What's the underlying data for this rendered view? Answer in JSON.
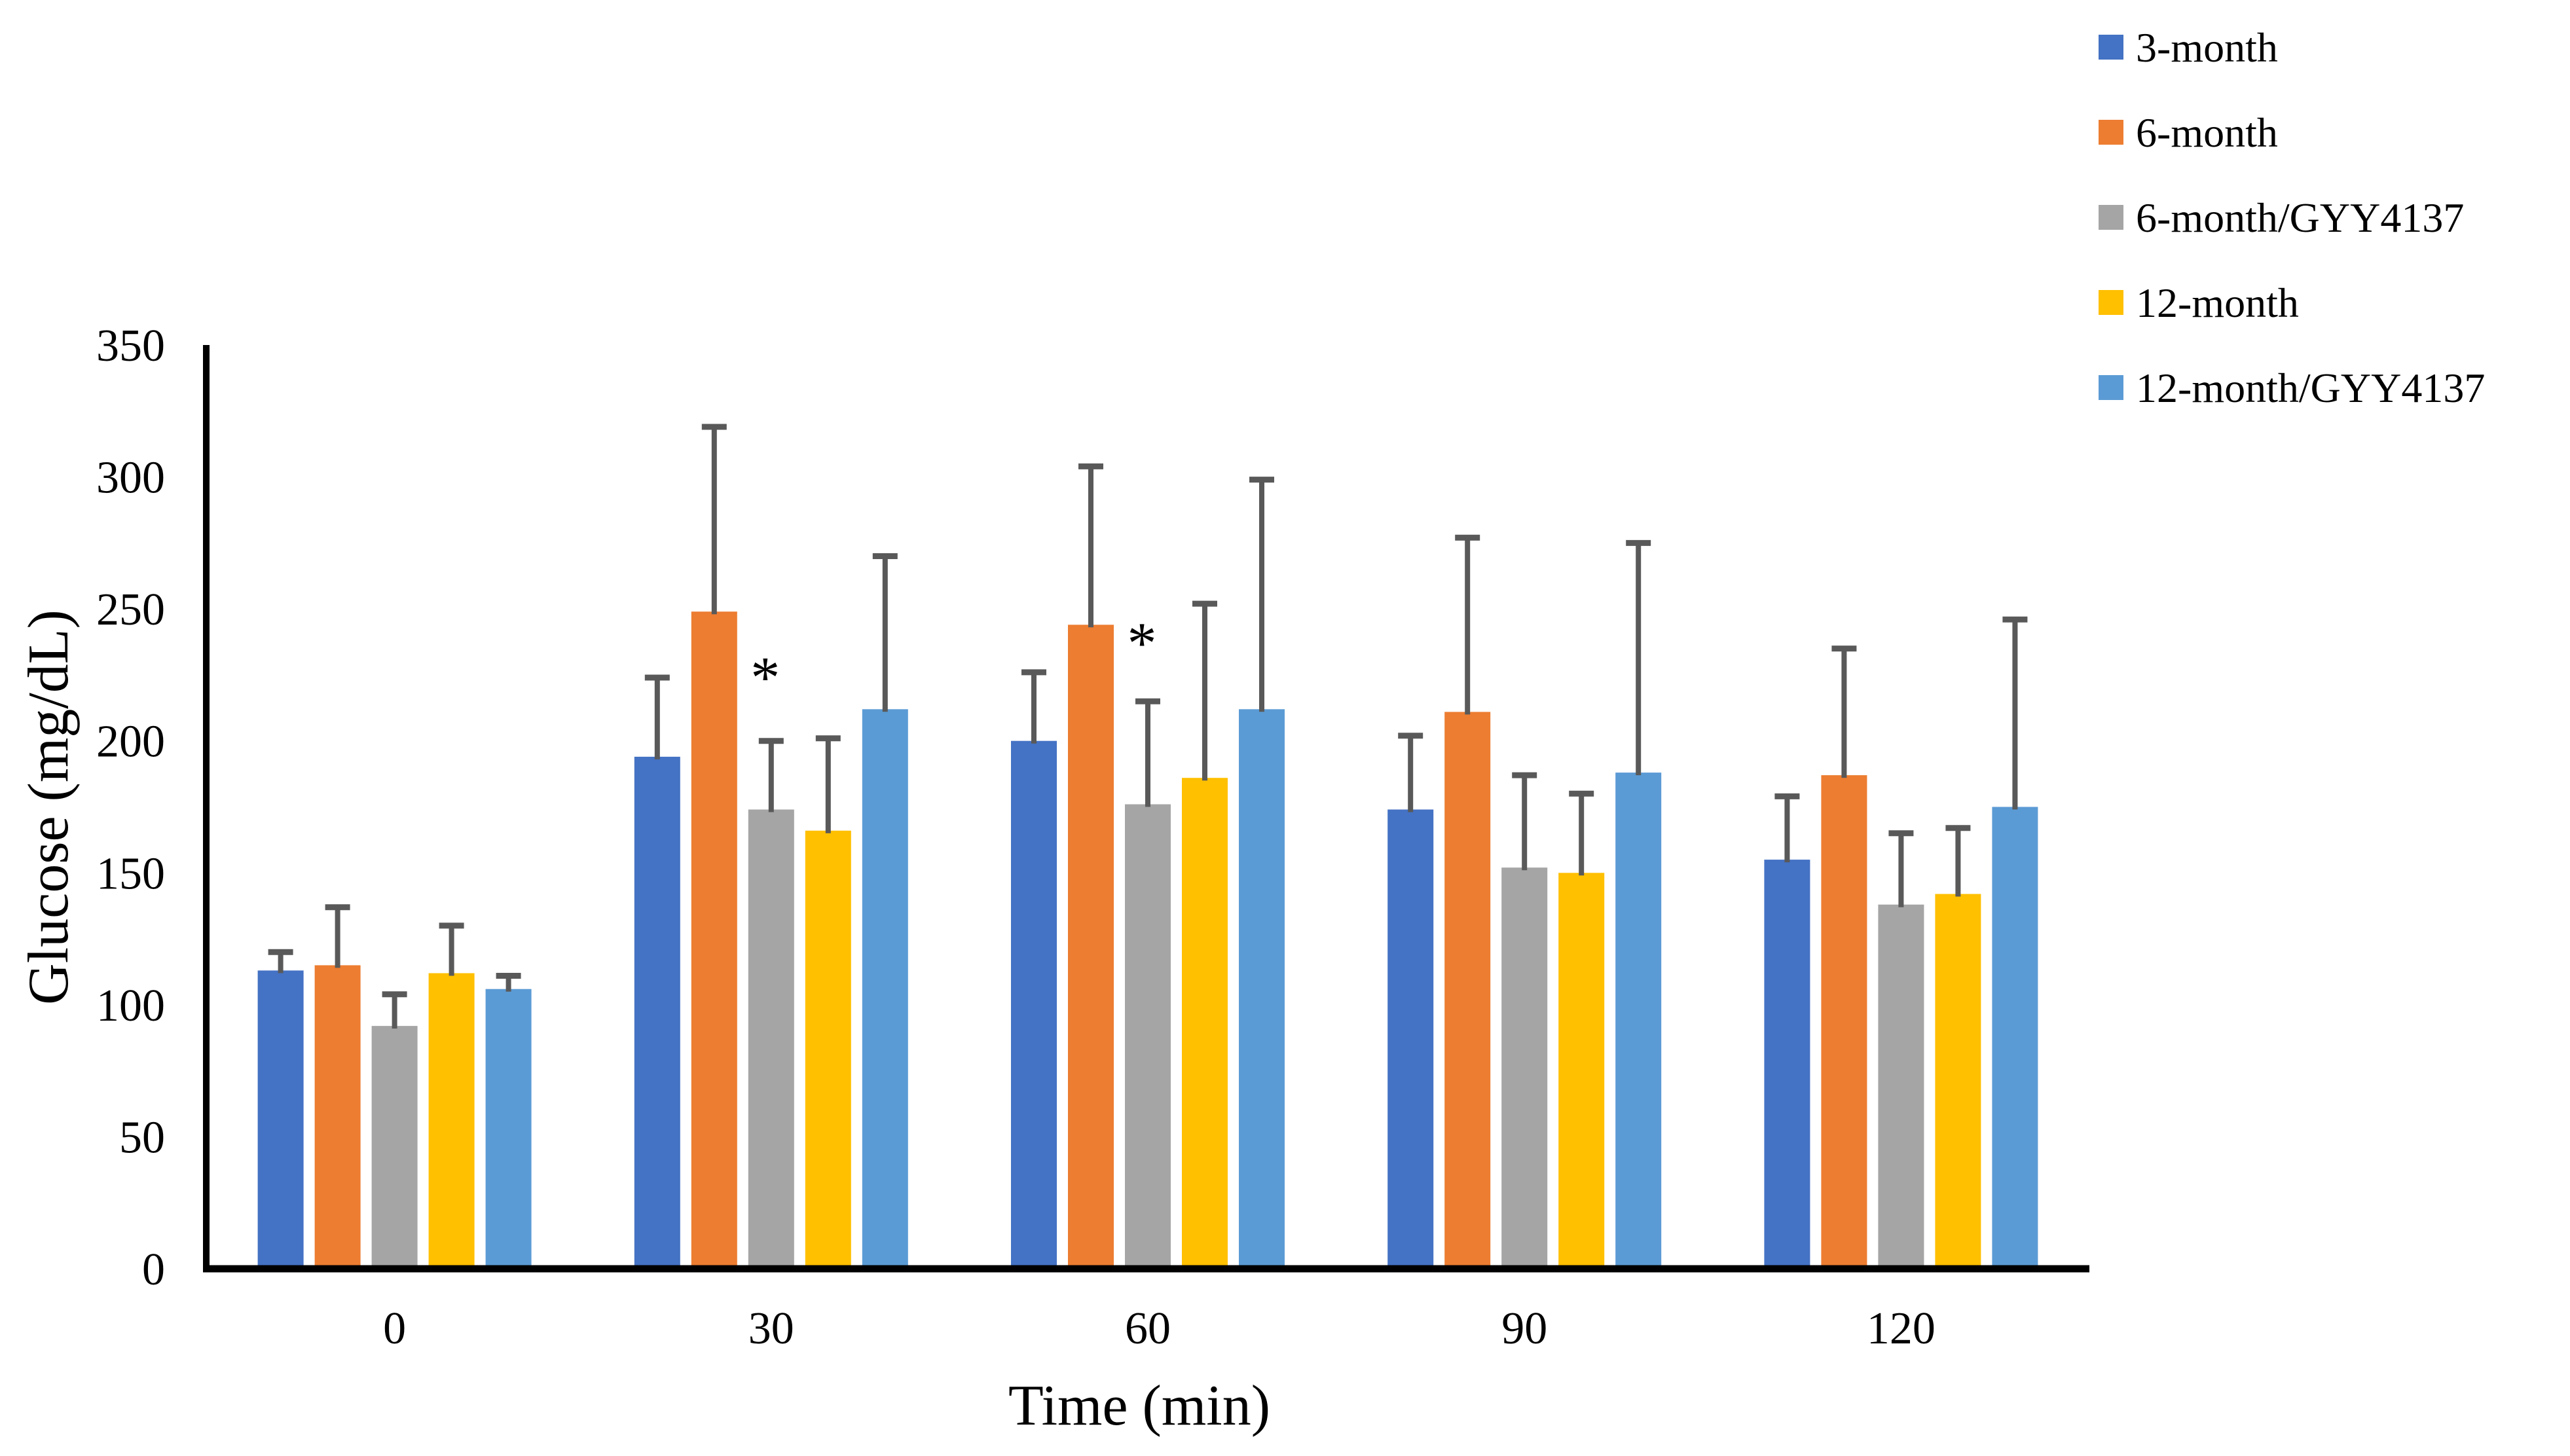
{
  "figure": {
    "background": "#FFFFFF",
    "axis_color": "#000000",
    "text_color": "#000000"
  },
  "chart_data": {
    "type": "bar",
    "title": "",
    "xlabel": "Time (min)",
    "ylabel": "Glucose (mg/dL)",
    "categories": [
      "0",
      "30",
      "60",
      "90",
      "120"
    ],
    "series": [
      {
        "name": "3-month",
        "color": "#4472C4",
        "values": [
          113,
          194,
          200,
          174,
          155
        ],
        "error_up": [
          7,
          30,
          26,
          28,
          24
        ]
      },
      {
        "name": "6-month",
        "color": "#ED7D31",
        "values": [
          115,
          249,
          244,
          211,
          187
        ],
        "error_up": [
          22,
          70,
          60,
          66,
          48
        ]
      },
      {
        "name": "6-month/GYY4137",
        "color": "#A5A5A5",
        "values": [
          92,
          174,
          176,
          152,
          138
        ],
        "error_up": [
          12,
          26,
          39,
          35,
          27
        ]
      },
      {
        "name": "12-month",
        "color": "#FFC000",
        "values": [
          112,
          166,
          186,
          150,
          142
        ],
        "error_up": [
          18,
          35,
          66,
          30,
          25
        ]
      },
      {
        "name": "12-month/GYY4137",
        "color": "#5B9BD5",
        "values": [
          106,
          212,
          212,
          188,
          175
        ],
        "error_up": [
          5,
          58,
          87,
          87,
          71
        ]
      }
    ],
    "ylim": [
      0,
      350
    ],
    "ytick_step": 50,
    "yticks": [
      "0",
      "50",
      "100",
      "150",
      "200",
      "250",
      "300",
      "350"
    ],
    "xticks": [
      "0",
      "30",
      "60",
      "90",
      "120"
    ],
    "grid": false,
    "legend_position": "top-right",
    "error_bar_color": "#595959",
    "bar_edge": "none",
    "annotations": [
      {
        "text": "*",
        "category": "30",
        "above_series": "6-month/GYY4137",
        "y_value": 226
      },
      {
        "text": "*",
        "category": "60",
        "above_series": "6-month/GYY4137",
        "y_value": 239
      }
    ]
  }
}
